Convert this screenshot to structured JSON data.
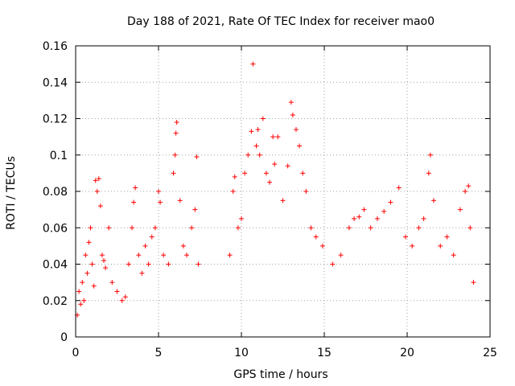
{
  "chart_data": {
    "type": "scatter",
    "title": "Day 188 of 2021, Rate Of TEC Index for receiver mao0",
    "xlabel": "GPS time / hours",
    "ylabel": "ROTI / TECUs",
    "xlim": [
      0,
      25
    ],
    "ylim": [
      0,
      0.16
    ],
    "xticks": [
      0,
      5,
      10,
      15,
      20,
      25
    ],
    "xtick_labels": [
      "0",
      "5",
      "10",
      "15",
      "20",
      "25"
    ],
    "yticks": [
      0,
      0.02,
      0.04,
      0.06,
      0.08,
      0.1,
      0.12,
      0.14,
      0.16
    ],
    "ytick_labels": [
      "0",
      "0.02",
      "0.04",
      "0.06",
      "0.08",
      "0.1",
      "0.12",
      "0.14",
      "0.16"
    ],
    "grid": true,
    "marker": "+",
    "color": "#ff0000",
    "series": [
      {
        "points": [
          [
            0.1,
            0.012
          ],
          [
            0.2,
            0.025
          ],
          [
            0.3,
            0.018
          ],
          [
            0.4,
            0.03
          ],
          [
            0.5,
            0.02
          ],
          [
            0.6,
            0.045
          ],
          [
            0.7,
            0.035
          ],
          [
            0.8,
            0.052
          ],
          [
            0.9,
            0.06
          ],
          [
            1.0,
            0.04
          ],
          [
            1.1,
            0.028
          ],
          [
            1.2,
            0.086
          ],
          [
            1.3,
            0.08
          ],
          [
            1.4,
            0.087
          ],
          [
            1.5,
            0.072
          ],
          [
            1.6,
            0.045
          ],
          [
            1.7,
            0.042
          ],
          [
            1.8,
            0.038
          ],
          [
            2.0,
            0.06
          ],
          [
            2.2,
            0.03
          ],
          [
            2.5,
            0.025
          ],
          [
            2.8,
            0.02
          ],
          [
            3.0,
            0.022
          ],
          [
            3.2,
            0.04
          ],
          [
            3.4,
            0.06
          ],
          [
            3.5,
            0.074
          ],
          [
            3.6,
            0.082
          ],
          [
            3.8,
            0.045
          ],
          [
            4.0,
            0.035
          ],
          [
            4.2,
            0.05
          ],
          [
            4.4,
            0.04
          ],
          [
            4.6,
            0.055
          ],
          [
            4.8,
            0.06
          ],
          [
            5.0,
            0.08
          ],
          [
            5.1,
            0.074
          ],
          [
            5.3,
            0.045
          ],
          [
            5.6,
            0.04
          ],
          [
            5.9,
            0.09
          ],
          [
            6.0,
            0.1
          ],
          [
            6.05,
            0.112
          ],
          [
            6.1,
            0.118
          ],
          [
            6.3,
            0.075
          ],
          [
            6.5,
            0.05
          ],
          [
            6.7,
            0.045
          ],
          [
            7.0,
            0.06
          ],
          [
            7.2,
            0.07
          ],
          [
            7.3,
            0.099
          ],
          [
            7.4,
            0.04
          ],
          [
            9.3,
            0.045
          ],
          [
            9.5,
            0.08
          ],
          [
            9.6,
            0.088
          ],
          [
            9.8,
            0.06
          ],
          [
            10.0,
            0.065
          ],
          [
            10.2,
            0.09
          ],
          [
            10.4,
            0.1
          ],
          [
            10.6,
            0.113
          ],
          [
            10.7,
            0.15
          ],
          [
            10.9,
            0.105
          ],
          [
            11.0,
            0.114
          ],
          [
            11.1,
            0.1
          ],
          [
            11.3,
            0.12
          ],
          [
            11.5,
            0.09
          ],
          [
            11.7,
            0.085
          ],
          [
            11.9,
            0.11
          ],
          [
            12.0,
            0.095
          ],
          [
            12.2,
            0.11
          ],
          [
            12.5,
            0.075
          ],
          [
            12.8,
            0.094
          ],
          [
            13.0,
            0.129
          ],
          [
            13.1,
            0.122
          ],
          [
            13.3,
            0.114
          ],
          [
            13.5,
            0.105
          ],
          [
            13.7,
            0.09
          ],
          [
            13.9,
            0.08
          ],
          [
            14.2,
            0.06
          ],
          [
            14.5,
            0.055
          ],
          [
            14.9,
            0.05
          ],
          [
            15.5,
            0.04
          ],
          [
            16.0,
            0.045
          ],
          [
            16.5,
            0.06
          ],
          [
            16.8,
            0.065
          ],
          [
            17.1,
            0.066
          ],
          [
            17.4,
            0.07
          ],
          [
            17.8,
            0.06
          ],
          [
            18.2,
            0.065
          ],
          [
            18.6,
            0.069
          ],
          [
            19.0,
            0.074
          ],
          [
            19.5,
            0.082
          ],
          [
            19.9,
            0.055
          ],
          [
            20.3,
            0.05
          ],
          [
            20.7,
            0.06
          ],
          [
            21.0,
            0.065
          ],
          [
            21.3,
            0.09
          ],
          [
            21.4,
            0.1
          ],
          [
            21.6,
            0.075
          ],
          [
            22.0,
            0.05
          ],
          [
            22.4,
            0.055
          ],
          [
            22.8,
            0.045
          ],
          [
            23.2,
            0.07
          ],
          [
            23.5,
            0.08
          ],
          [
            23.7,
            0.083
          ],
          [
            23.8,
            0.06
          ],
          [
            24.0,
            0.03
          ]
        ]
      }
    ]
  }
}
